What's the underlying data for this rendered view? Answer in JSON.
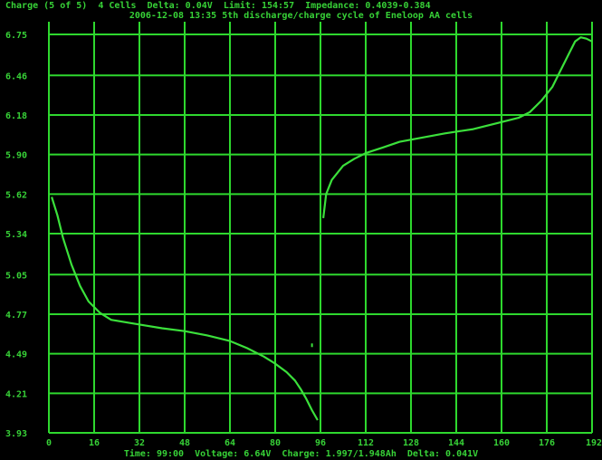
{
  "header": {
    "line1": "Charge (5 of 5)  4 Cells  Delta: 0.04V  Limit: 154:57  Impedance: 0.4039-0.384",
    "line2": "2006-12-08 13:35 5th discharge/charge cycle of Eneloop AA cells"
  },
  "footer": {
    "text": "Time: 99:00  Voltage: 6.64V  Charge: 1.997/1.948Ah  Delta: 0.041V"
  },
  "colors": {
    "background": "#000000",
    "grid": "#2ed82e",
    "trace": "#3be03b",
    "text": "#37d237"
  },
  "chart_data": {
    "type": "line",
    "title": "",
    "xlabel": "",
    "ylabel": "",
    "xlim": [
      0,
      192
    ],
    "ylim": [
      3.93,
      6.84
    ],
    "grid": true,
    "x_ticks": [
      0,
      16,
      32,
      48,
      64,
      80,
      96,
      112,
      128,
      144,
      160,
      176,
      192
    ],
    "x_tick_labels": [
      "0",
      "16",
      "32",
      "48",
      "64",
      "80",
      "96",
      "112",
      "128",
      "144",
      "160",
      "176",
      "192"
    ],
    "y_ticks": [
      3.93,
      4.21,
      4.49,
      4.77,
      5.05,
      5.34,
      5.62,
      5.9,
      6.18,
      6.46,
      6.75
    ],
    "y_tick_labels": [
      "3.93",
      "4.21",
      "4.49",
      "4.77",
      "5.05",
      "5.34",
      "5.62",
      "5.90",
      "6.18",
      "6.46",
      "6.75"
    ],
    "series": [
      {
        "x": [
          1,
          3,
          5,
          8,
          11,
          14,
          18,
          22,
          28,
          34,
          40,
          48,
          56,
          64,
          70,
          76,
          80,
          84,
          87,
          89,
          91,
          93,
          95
        ],
        "y": [
          5.6,
          5.47,
          5.31,
          5.12,
          4.97,
          4.86,
          4.78,
          4.73,
          4.71,
          4.69,
          4.67,
          4.65,
          4.62,
          4.58,
          4.53,
          4.47,
          4.42,
          4.36,
          4.3,
          4.24,
          4.17,
          4.09,
          4.02
        ]
      },
      {
        "x": [
          97,
          98,
          100,
          104,
          108,
          112,
          118,
          124,
          132,
          140,
          150,
          160,
          166,
          170,
          174,
          178,
          181,
          184,
          186,
          188,
          190,
          192
        ],
        "y": [
          5.45,
          5.62,
          5.72,
          5.82,
          5.87,
          5.91,
          5.95,
          5.99,
          6.02,
          6.05,
          6.08,
          6.13,
          6.16,
          6.2,
          6.28,
          6.38,
          6.5,
          6.62,
          6.7,
          6.73,
          6.72,
          6.7
        ]
      }
    ],
    "points": [
      {
        "x": 93,
        "y": 4.55
      }
    ]
  }
}
